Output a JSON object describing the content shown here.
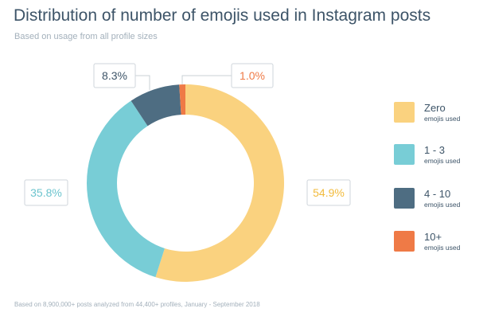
{
  "header": {
    "title": "Distribution of number of emojis used in Instagram posts",
    "subtitle": "Based on usage from all profile sizes"
  },
  "footnote": "Based on 8,900,000+ posts analyzed from 44,400+ profiles, January - September 2018",
  "chart_data": {
    "type": "pie",
    "style": "donut",
    "title": "Distribution of number of emojis used in Instagram posts",
    "subtitle": "Based on usage from all profile sizes",
    "categories": [
      "Zero",
      "1 - 3",
      "4 - 10",
      "10+"
    ],
    "values": [
      54.9,
      35.8,
      8.3,
      1.0
    ],
    "labels": [
      "54.9%",
      "35.8%",
      "8.3%",
      "1.0%"
    ],
    "colors": [
      "#fad27f",
      "#78cdd6",
      "#4e6d82",
      "#ef7a46"
    ],
    "legend_position": "right",
    "legend": [
      {
        "name": "Zero",
        "sub": "emojis used"
      },
      {
        "name": "1 - 3",
        "sub": "emojis used"
      },
      {
        "name": "4 - 10",
        "sub": "emojis used"
      },
      {
        "name": "10+",
        "sub": "emojis used"
      }
    ]
  }
}
